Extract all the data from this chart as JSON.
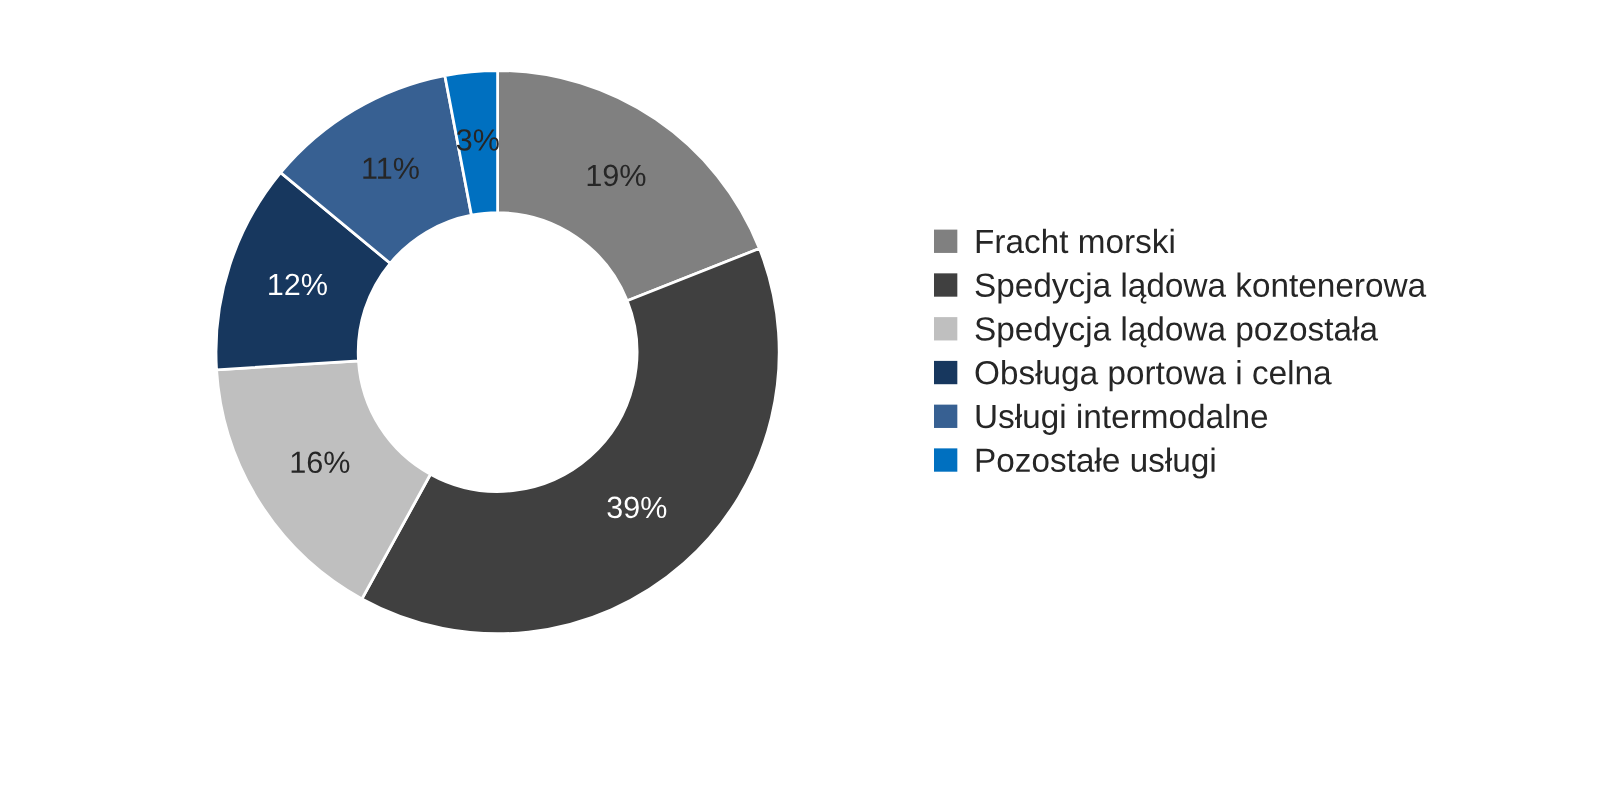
{
  "chart_data": {
    "type": "donut",
    "categories": [
      "Fracht morski",
      "Spedycja lądowa kontenerowa",
      "Spedycja lądowa pozostała",
      "Obsługa portowa i celna",
      "Usługi intermodalne",
      "Pozostałe usługi"
    ],
    "values": [
      19,
      39,
      16,
      12,
      11,
      3
    ],
    "colors": [
      "#808080",
      "#404040",
      "#bfbfbf",
      "#17375e",
      "#376092",
      "#0070c0"
    ],
    "value_labels": [
      "19%",
      "39%",
      "16%",
      "12%",
      "11%",
      "3%"
    ],
    "legend": "right"
  }
}
